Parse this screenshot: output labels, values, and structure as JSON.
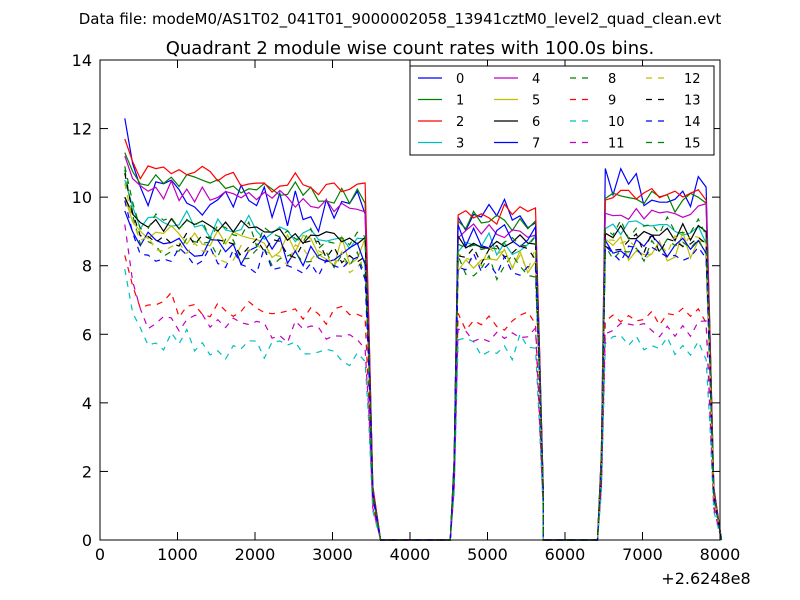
{
  "header": {
    "datafile": "Data file: modeM0/AS1T02_041T01_9000002058_13941cztM0_level2_quad_clean.evt"
  },
  "chart_data": {
    "type": "line",
    "title": "Quadrant 2 module wise count rates with 100.0s bins.",
    "xlabel": "",
    "ylabel": "",
    "x_offset_label": "+2.6248e8",
    "xlim": [
      0,
      8000
    ],
    "ylim": [
      0,
      14
    ],
    "xticks": [
      0,
      1000,
      2000,
      3000,
      4000,
      5000,
      6000,
      7000,
      8000
    ],
    "yticks": [
      0,
      2,
      4,
      6,
      8,
      10,
      12,
      14
    ],
    "grid": false,
    "legend_position": "top-right",
    "segments": [
      {
        "x_start": 320,
        "x_end": 3420,
        "step": 100
      },
      {
        "x_start": 4620,
        "x_end": 5620,
        "step": 100
      },
      {
        "x_start": 6520,
        "x_end": 7820,
        "step": 100
      }
    ],
    "zero_gaps": [
      [
        3620,
        4520
      ],
      [
        5720,
        6420
      ]
    ],
    "series": [
      {
        "name": "0",
        "color": "#0000ff",
        "dash": "solid",
        "segment_means": [
          9.9,
          9.4,
          10.2
        ],
        "start_value": 12.3,
        "noise": 0.55,
        "jag": 0.9
      },
      {
        "name": "1",
        "color": "#008000",
        "dash": "solid",
        "segment_means": [
          10.3,
          9.3,
          9.9
        ],
        "start_value": 11.3,
        "noise": 0.25,
        "jag": 0.5
      },
      {
        "name": "2",
        "color": "#ff0000",
        "dash": "solid",
        "segment_means": [
          10.5,
          9.5,
          10.1
        ],
        "start_value": 11.7,
        "noise": 0.25,
        "jag": 0.5
      },
      {
        "name": "3",
        "color": "#00bfbf",
        "dash": "solid",
        "segment_means": [
          9.1,
          8.6,
          9.0
        ],
        "start_value": 10.5,
        "noise": 0.3,
        "jag": 0.5
      },
      {
        "name": "4",
        "color": "#bf00bf",
        "dash": "solid",
        "segment_means": [
          10.0,
          9.0,
          9.6
        ],
        "start_value": 11.2,
        "noise": 0.25,
        "jag": 0.4
      },
      {
        "name": "5",
        "color": "#bfbf00",
        "dash": "solid",
        "segment_means": [
          8.7,
          8.2,
          8.5
        ],
        "start_value": 10.0,
        "noise": 0.4,
        "jag": 0.5
      },
      {
        "name": "6",
        "color": "#000000",
        "dash": "solid",
        "segment_means": [
          9.1,
          8.6,
          9.0
        ],
        "start_value": 10.0,
        "noise": 0.25,
        "jag": 0.4
      },
      {
        "name": "7",
        "color": "#0000ff",
        "dash": "solid",
        "segment_means": [
          8.5,
          8.8,
          8.4
        ],
        "start_value": 9.6,
        "noise": 0.4,
        "jag": 0.8
      },
      {
        "name": "8",
        "color": "#008000",
        "dash": "dashed",
        "segment_means": [
          8.4,
          8.0,
          8.5
        ],
        "start_value": 10.8,
        "noise": 0.35,
        "jag": 0.5
      },
      {
        "name": "9",
        "color": "#ff0000",
        "dash": "dashed",
        "segment_means": [
          6.7,
          6.4,
          6.6
        ],
        "start_value": 8.3,
        "noise": 0.3,
        "jag": 0.4
      },
      {
        "name": "10",
        "color": "#00bfbf",
        "dash": "dashed",
        "segment_means": [
          5.6,
          5.6,
          5.6
        ],
        "start_value": 7.9,
        "noise": 0.35,
        "jag": 0.6
      },
      {
        "name": "11",
        "color": "#bf00bf",
        "dash": "dashed",
        "segment_means": [
          6.2,
          6.0,
          6.2
        ],
        "start_value": 9.2,
        "noise": 0.3,
        "jag": 0.4
      },
      {
        "name": "12",
        "color": "#bfbf00",
        "dash": "dashed",
        "segment_means": [
          8.4,
          8.2,
          8.6
        ],
        "start_value": 10.4,
        "noise": 0.35,
        "jag": 0.5
      },
      {
        "name": "13",
        "color": "#000000",
        "dash": "dashed",
        "segment_means": [
          8.6,
          8.3,
          8.6
        ],
        "start_value": 10.7,
        "noise": 0.3,
        "jag": 0.5
      },
      {
        "name": "14",
        "color": "#0000ff",
        "dash": "dashed",
        "segment_means": [
          8.2,
          8.0,
          8.3
        ],
        "start_value": 9.9,
        "noise": 0.3,
        "jag": 0.5
      },
      {
        "name": "15",
        "color": "#008000",
        "dash": "dashed",
        "segment_means": [
          9.0,
          8.7,
          9.1
        ],
        "start_value": 10.9,
        "noise": 0.3,
        "jag": 0.5
      }
    ]
  }
}
